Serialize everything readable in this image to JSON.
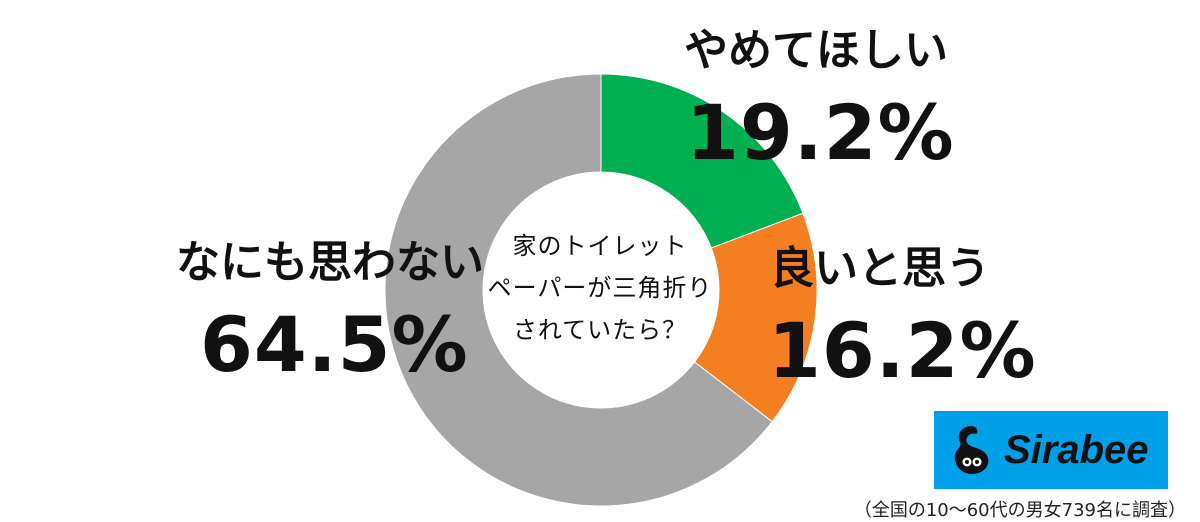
{
  "chart_data": {
    "type": "pie",
    "title": "家のトイレットペーパーが三角折りされていたら？",
    "title_lines": [
      "家のトイレット",
      "ペーパーが三角折り",
      "されていたら？"
    ],
    "categories": [
      "やめてほしい",
      "良いと思う",
      "なにも思わない"
    ],
    "values": [
      19.2,
      16.2,
      64.5
    ],
    "value_labels": [
      "19.2%",
      "16.2%",
      "64.5%"
    ],
    "colors": [
      "#00b050",
      "#f47f20",
      "#a6a6a6"
    ],
    "donut": true
  },
  "brand": {
    "name": "Sirabee",
    "color": "#00a0e9",
    "icon": "sirabee-mascot-icon"
  },
  "footnote": "（全国の10～60代の男女739名に調査）"
}
